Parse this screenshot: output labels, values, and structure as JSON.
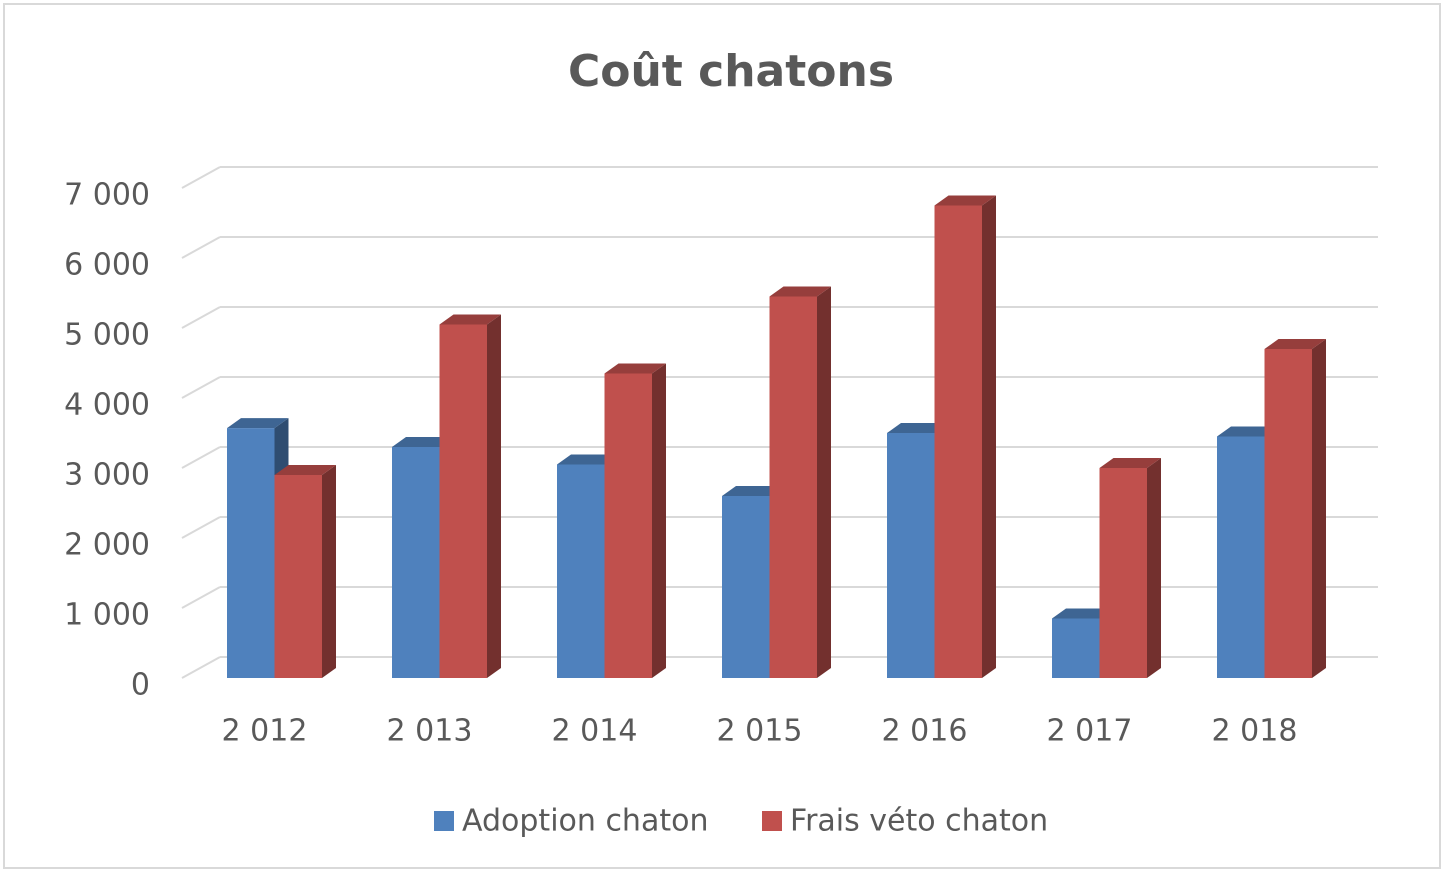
{
  "chart_data": {
    "type": "bar3d",
    "title": "Coût chatons",
    "categories": [
      "2 012",
      "2 013",
      "2 014",
      "2 015",
      "2 016",
      "2 017",
      "2 018"
    ],
    "series": [
      {
        "name": "Adoption chaton",
        "color": "#4f81bd",
        "values": [
          3570,
          3300,
          3050,
          2600,
          3500,
          850,
          3450
        ]
      },
      {
        "name": "Frais véto chaton",
        "color": "#c0504d",
        "values": [
          2900,
          5050,
          4350,
          5450,
          6750,
          3000,
          4700
        ]
      }
    ],
    "ylim": [
      0,
      7000
    ],
    "yticks": [
      0,
      {
        "value": 1000,
        "label": "1 000"
      },
      {
        "value": 2000,
        "label": "2 000"
      },
      {
        "value": 3000,
        "label": "3 000"
      },
      {
        "value": 4000,
        "label": "4 000"
      },
      {
        "value": 5000,
        "label": "5 000"
      },
      {
        "value": 6000,
        "label": "6 000"
      },
      {
        "value": 7000,
        "label": "7 000"
      }
    ],
    "grid": true,
    "legend": "bottom"
  }
}
